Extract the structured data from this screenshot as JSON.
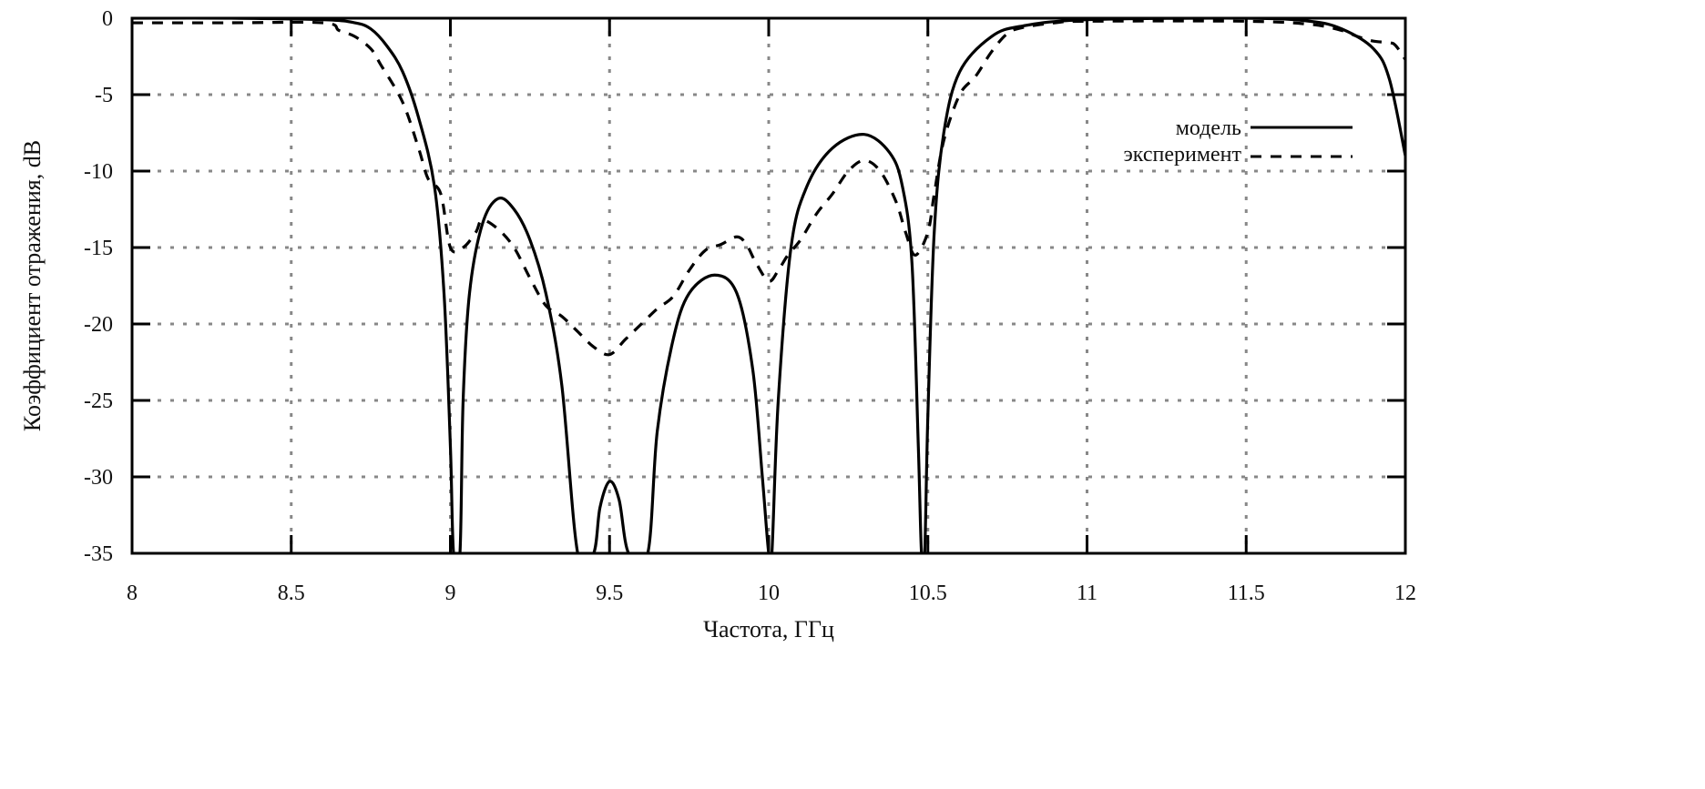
{
  "chart_data": {
    "type": "line",
    "title": "",
    "xlabel": "Частота, ГГц",
    "ylabel": "Коэффициент отражения, dB",
    "xlim": [
      8,
      12
    ],
    "ylim": [
      -35,
      0
    ],
    "xticks": [
      "8",
      "8.5",
      "9",
      "9.5",
      "10",
      "10.5",
      "11",
      "11.5",
      "12"
    ],
    "xtick_values": [
      8,
      8.5,
      9,
      9.5,
      10,
      10.5,
      11,
      11.5,
      12
    ],
    "yticks": [
      "0",
      "-5",
      "-10",
      "-15",
      "-20",
      "-25",
      "-30",
      "-35"
    ],
    "ytick_values": [
      0,
      -5,
      -10,
      -15,
      -20,
      -25,
      -30,
      -35
    ],
    "grid": true,
    "legend_position": "top-right",
    "series": [
      {
        "name": "модель",
        "style": "solid",
        "x": [
          8.0,
          8.3,
          8.6,
          8.7,
          8.75,
          8.8,
          8.85,
          8.9,
          8.95,
          8.98,
          9.0,
          9.01,
          9.03,
          9.04,
          9.06,
          9.1,
          9.15,
          9.2,
          9.25,
          9.3,
          9.35,
          9.4,
          9.45,
          9.47,
          9.5,
          9.53,
          9.56,
          9.62,
          9.65,
          9.7,
          9.75,
          9.83,
          9.9,
          9.95,
          9.98,
          10.0,
          10.01,
          10.03,
          10.07,
          10.12,
          10.2,
          10.3,
          10.38,
          10.42,
          10.45,
          10.47,
          10.48,
          10.49,
          10.5,
          10.52,
          10.55,
          10.6,
          10.7,
          10.8,
          11.0,
          11.5,
          11.7,
          11.8,
          11.9,
          11.95,
          12.0
        ],
        "y": [
          0,
          0,
          -0.1,
          -0.3,
          -0.7,
          -1.8,
          -3.5,
          -6.5,
          -11,
          -18,
          -28,
          -35,
          -35,
          -25,
          -18,
          -13.5,
          -11.8,
          -12.5,
          -14.5,
          -18,
          -24,
          -35,
          -35,
          -32,
          -30.3,
          -31.5,
          -35,
          -35,
          -27,
          -21,
          -18,
          -16.8,
          -18,
          -23,
          -30,
          -35,
          -35,
          -25,
          -15,
          -11,
          -8.5,
          -7.6,
          -8.8,
          -11,
          -16,
          -28,
          -35,
          -35,
          -26,
          -14,
          -7.5,
          -3.5,
          -1.2,
          -0.5,
          -0.1,
          0,
          -0.2,
          -0.7,
          -2,
          -4,
          -9
        ]
      },
      {
        "name": "эксперимент",
        "style": "dashed",
        "x": [
          8.0,
          8.3,
          8.6,
          8.65,
          8.7,
          8.75,
          8.78,
          8.85,
          8.9,
          8.93,
          8.97,
          9.0,
          9.04,
          9.08,
          9.1,
          9.15,
          9.2,
          9.25,
          9.3,
          9.35,
          9.4,
          9.45,
          9.5,
          9.55,
          9.6,
          9.65,
          9.7,
          9.75,
          9.8,
          9.85,
          9.9,
          9.93,
          9.96,
          10.0,
          10.03,
          10.06,
          10.1,
          10.15,
          10.2,
          10.25,
          10.3,
          10.35,
          10.4,
          10.43,
          10.46,
          10.5,
          10.52,
          10.55,
          10.6,
          10.65,
          10.7,
          10.75,
          10.8,
          10.9,
          11.0,
          11.5,
          11.7,
          11.8,
          11.85,
          11.9,
          11.95,
          11.97,
          12.0
        ],
        "y": [
          -0.3,
          -0.3,
          -0.3,
          -0.8,
          -1.2,
          -2,
          -3,
          -5.5,
          -8.5,
          -10.5,
          -11.5,
          -15,
          -15,
          -14,
          -13.2,
          -13.8,
          -15,
          -17,
          -18.8,
          -19.5,
          -20.5,
          -21.5,
          -22,
          -21,
          -20,
          -19,
          -18.2,
          -16.5,
          -15.2,
          -14.8,
          -14.3,
          -14.8,
          -16,
          -17.2,
          -16.5,
          -15.5,
          -14.5,
          -12.8,
          -11.5,
          -10,
          -9.3,
          -10,
          -12,
          -14,
          -15.5,
          -14,
          -11.5,
          -8,
          -5,
          -3.8,
          -2.2,
          -1,
          -0.6,
          -0.3,
          -0.2,
          -0.2,
          -0.4,
          -0.8,
          -1.2,
          -1.5,
          -1.6,
          -1.8,
          -2.7
        ]
      }
    ]
  }
}
